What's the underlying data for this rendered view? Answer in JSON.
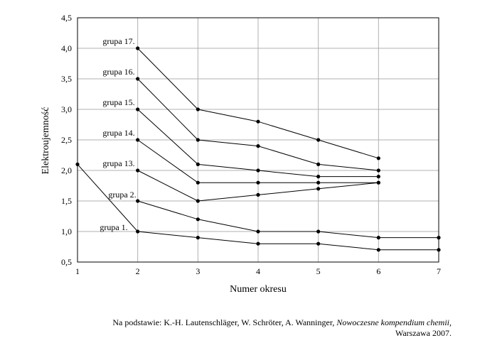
{
  "chart_data": {
    "type": "line",
    "xlabel": "Numer okresu",
    "ylabel": "Elektroujemność",
    "xlim": [
      1,
      7
    ],
    "ylim": [
      0.5,
      4.5
    ],
    "x_ticks": [
      "1",
      "2",
      "3",
      "4",
      "5",
      "6",
      "7"
    ],
    "y_ticks": [
      "0,5",
      "1,0",
      "1,5",
      "2,0",
      "2,5",
      "3,0",
      "3,5",
      "4,0",
      "4,5"
    ],
    "grid": "horizontal and vertical",
    "series": [
      {
        "name": "grupa 1.",
        "x": [
          1,
          2,
          3,
          4,
          5,
          6,
          7
        ],
        "y": [
          2.1,
          1.0,
          0.9,
          0.8,
          0.8,
          0.7,
          0.7
        ]
      },
      {
        "name": "grupa 2.",
        "x": [
          2,
          3,
          4,
          5,
          6,
          7
        ],
        "y": [
          1.5,
          1.2,
          1.0,
          1.0,
          0.9,
          0.9
        ]
      },
      {
        "name": "grupa 13.",
        "x": [
          2,
          3,
          4,
          5,
          6
        ],
        "y": [
          2.0,
          1.5,
          1.6,
          1.7,
          1.8
        ]
      },
      {
        "name": "grupa 14.",
        "x": [
          2,
          3,
          4,
          5,
          6
        ],
        "y": [
          2.5,
          1.8,
          1.8,
          1.8,
          1.8
        ]
      },
      {
        "name": "grupa 15.",
        "x": [
          2,
          3,
          4,
          5,
          6
        ],
        "y": [
          3.0,
          2.1,
          2.0,
          1.9,
          1.9
        ]
      },
      {
        "name": "grupa 16.",
        "x": [
          2,
          3,
          4,
          5,
          6
        ],
        "y": [
          3.5,
          2.5,
          2.4,
          2.1,
          2.0
        ]
      },
      {
        "name": "grupa 17.",
        "x": [
          2,
          3,
          4,
          5,
          6
        ],
        "y": [
          4.0,
          3.0,
          2.8,
          2.5,
          2.2
        ]
      }
    ],
    "line_color": "#000000",
    "grid_color": "#b0b0b0"
  },
  "source": {
    "prefix": "Na podstawie: K.-H. Lautenschläger, W. Schröter, A. Wanninger, ",
    "title": "Nowoczesne kompendium chemii,",
    "suffix": "Warszawa 2007."
  }
}
